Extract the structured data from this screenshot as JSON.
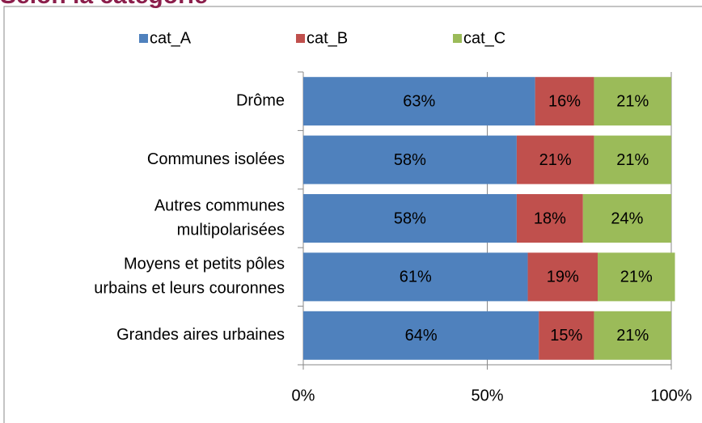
{
  "chart_data": {
    "type": "stacked_barh",
    "title": "Selon la catégorie",
    "categories": [
      [
        "Drôme"
      ],
      [
        "Communes isolées"
      ],
      [
        "Autres communes",
        "multipolarisées"
      ],
      [
        "Moyens et petits pôles",
        "urbains et leurs couronnes"
      ],
      [
        "Grandes aires urbaines"
      ]
    ],
    "series": [
      {
        "name": "cat_A",
        "color": "#4f81bd",
        "values": [
          63,
          58,
          58,
          61,
          64
        ],
        "value_labels": [
          "63%",
          "58%",
          "58%",
          "61%",
          "64%"
        ]
      },
      {
        "name": "cat_B",
        "color": "#c0504d",
        "values": [
          16,
          21,
          18,
          19,
          15
        ],
        "value_labels": [
          "16%",
          "21%",
          "18%",
          "19%",
          "15%"
        ]
      },
      {
        "name": "cat_C",
        "color": "#9bbb59",
        "values": [
          21,
          21,
          24,
          21,
          21
        ],
        "value_labels": [
          "21%",
          "21%",
          "24%",
          "21%",
          "21%"
        ]
      }
    ],
    "xlim": [
      0,
      100
    ],
    "xticks": [
      {
        "value": 0,
        "label": "0%"
      },
      {
        "value": 50,
        "label": "50%"
      },
      {
        "value": 100,
        "label": "100%"
      }
    ],
    "grid": true,
    "legend": "top"
  }
}
